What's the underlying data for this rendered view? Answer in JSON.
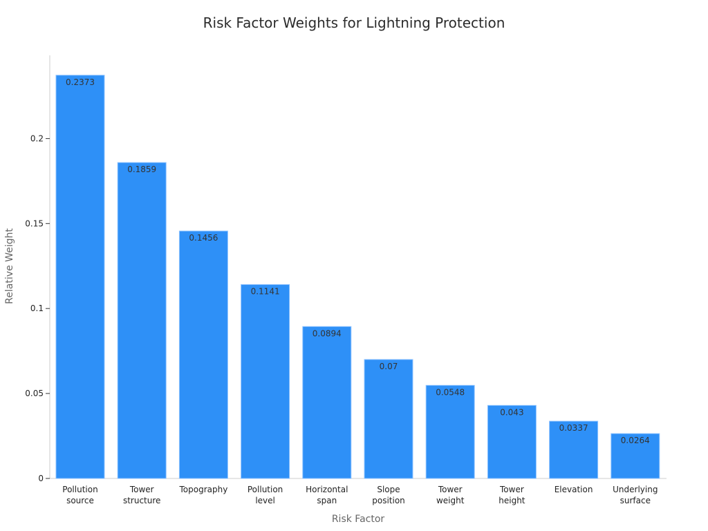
{
  "chart_data": {
    "type": "bar",
    "title": "Risk Factor Weights for Lightning Protection",
    "xlabel": "Risk Factor",
    "ylabel": "Relative Weight",
    "categories": [
      [
        "Pollution",
        "source"
      ],
      [
        "Tower",
        "structure"
      ],
      [
        "Topography"
      ],
      [
        "Pollution",
        "level"
      ],
      [
        "Horizontal",
        "span"
      ],
      [
        "Slope",
        "position"
      ],
      [
        "Tower",
        "weight"
      ],
      [
        "Tower",
        "height"
      ],
      [
        "Elevation"
      ],
      [
        "Underlying",
        "surface"
      ]
    ],
    "values": [
      0.2373,
      0.1859,
      0.1456,
      0.1141,
      0.0894,
      0.07,
      0.0548,
      0.043,
      0.0337,
      0.0264
    ],
    "value_labels": [
      "0.2373",
      "0.1859",
      "0.1456",
      "0.1141",
      "0.0894",
      "0.07",
      "0.0548",
      "0.043",
      "0.0337",
      "0.0264"
    ],
    "yticks": [
      0,
      0.05,
      0.1,
      0.15,
      0.2
    ],
    "ytick_labels": [
      "0",
      "0.05",
      "0.1",
      "0.15",
      "0.2"
    ],
    "ylim": [
      0,
      0.249
    ],
    "grid": false,
    "bar_color": "#2e90f7"
  }
}
